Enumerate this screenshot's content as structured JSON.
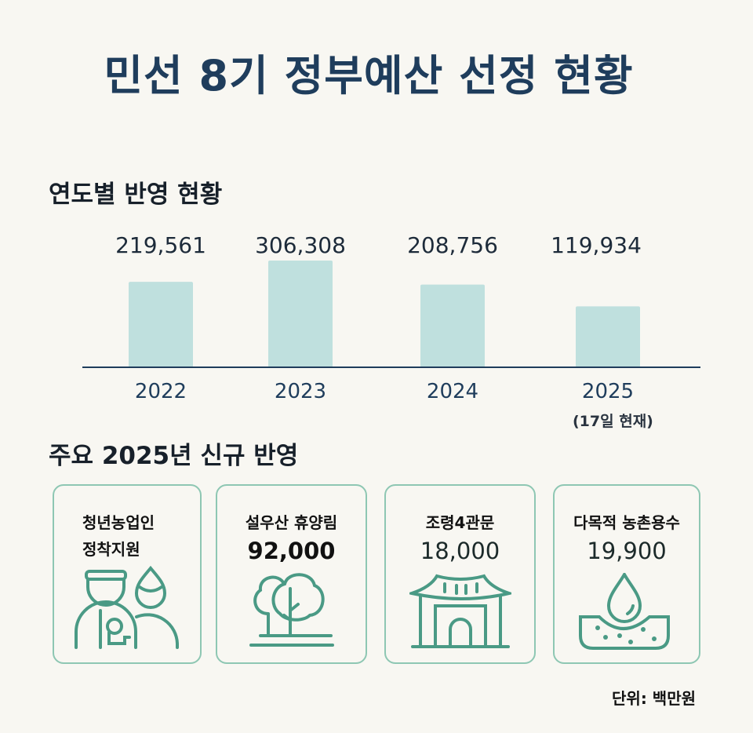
{
  "title": "민선 8기 정부예산 선정 현황",
  "section1_title": "연도별 반영 현황",
  "section2_title": "주요 2025년 신규 반영",
  "chart_data": {
    "type": "bar",
    "categories": [
      "2022",
      "2023",
      "2024",
      "2025"
    ],
    "values": [
      219561,
      306308,
      208756,
      119934
    ],
    "value_labels": [
      "219,561",
      "306,308",
      "208,756",
      "119,934"
    ],
    "annotation": "(17일 현재)",
    "title": "",
    "xlabel": "",
    "ylabel": "",
    "ylim": [
      0,
      306308
    ],
    "grid": false,
    "bar_color": "#bfe0de",
    "axis_color": "#1f3d5c"
  },
  "cards": [
    {
      "label_line1": "청년농업인",
      "label_line2": "정착지원",
      "value": "",
      "icon": "farmer-couple-icon"
    },
    {
      "label_line1": "설우산 휴양림",
      "value": "92,000",
      "icon": "trees-icon"
    },
    {
      "label_line1": "조령4관문",
      "value": "18,000",
      "icon": "traditional-gate-icon"
    },
    {
      "label_line1": "다목적 농촌용수",
      "value": "19,900",
      "icon": "water-drop-soil-icon"
    }
  ],
  "unit": "단위: 백만원",
  "colors": {
    "accent": "#4a9a85",
    "card_border": "#8ec7b3",
    "title": "#1f3d5c"
  }
}
